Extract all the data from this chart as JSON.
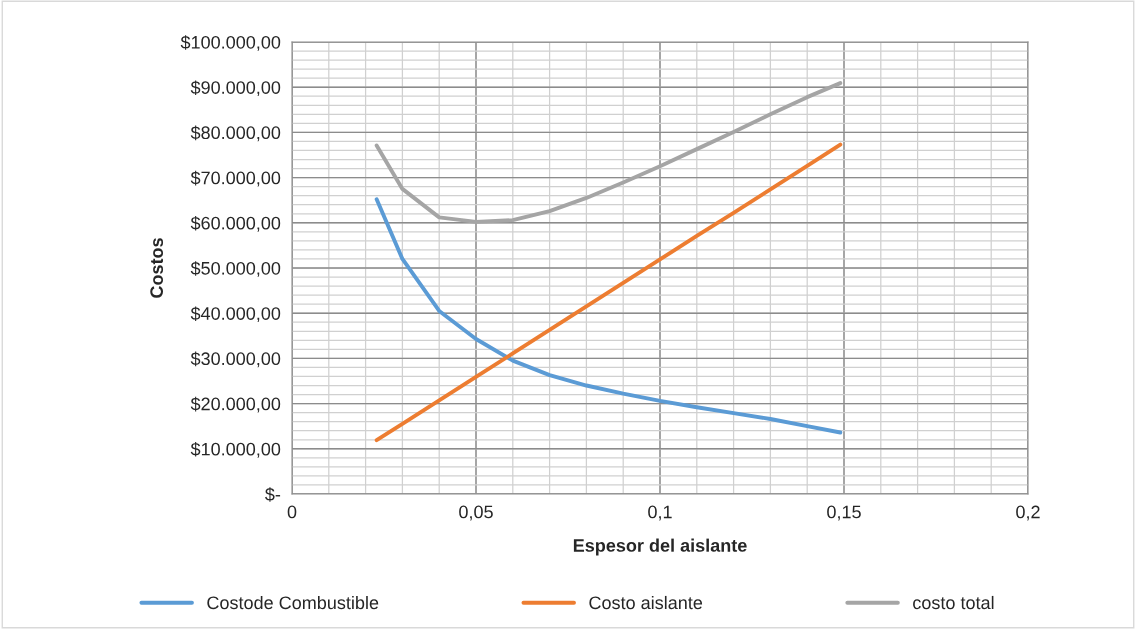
{
  "chart_data": {
    "type": "line",
    "xlabel": "Espesor del aislante",
    "ylabel": "Costos",
    "x": [
      0.023,
      0.03,
      0.04,
      0.05,
      0.06,
      0.07,
      0.08,
      0.09,
      0.1,
      0.11,
      0.12,
      0.13,
      0.14,
      0.149
    ],
    "series": [
      {
        "name": "Costode Combustible",
        "color": "#5b9bd5",
        "values": [
          65200,
          52000,
          40500,
          34300,
          29500,
          26300,
          24000,
          22200,
          20600,
          19200,
          17900,
          16600,
          15000,
          13600
        ]
      },
      {
        "name": "Costo aislante",
        "color": "#ed7d31",
        "values": [
          11900,
          15500,
          20700,
          25900,
          31100,
          36300,
          41500,
          46700,
          51900,
          57100,
          62200,
          67400,
          72600,
          77300
        ]
      },
      {
        "name": "costo total",
        "color": "#a5a5a5",
        "values": [
          77100,
          67500,
          61200,
          60200,
          60600,
          62600,
          65500,
          68900,
          72500,
          76300,
          80100,
          84000,
          87800,
          90900
        ]
      }
    ],
    "xlim": [
      0,
      0.2
    ],
    "xticks": [
      0,
      {
        "value": 0.05,
        "label": "0,05"
      },
      {
        "value": 0.1,
        "label": "0,1"
      },
      {
        "value": 0.15,
        "label": "0,15"
      },
      {
        "value": 0.2,
        "label": "0,2"
      }
    ],
    "ylim": [
      0,
      100000
    ],
    "yticks": [
      {
        "value": 0,
        "label": "$-"
      },
      {
        "value": 10000,
        "label": "$10.000,00"
      },
      {
        "value": 20000,
        "label": "$20.000,00"
      },
      {
        "value": 30000,
        "label": "$30.000,00"
      },
      {
        "value": 40000,
        "label": "$40.000,00"
      },
      {
        "value": 50000,
        "label": "$50.000,00"
      },
      {
        "value": 60000,
        "label": "$60.000,00"
      },
      {
        "value": 70000,
        "label": "$70.000,00"
      },
      {
        "value": 80000,
        "label": "$80.000,00"
      },
      {
        "value": 90000,
        "label": "$90.000,00"
      },
      {
        "value": 100000,
        "label": "$100.000,00"
      }
    ],
    "grid": true,
    "legend": "bottom",
    "marker": "none",
    "line_style": "solid"
  }
}
